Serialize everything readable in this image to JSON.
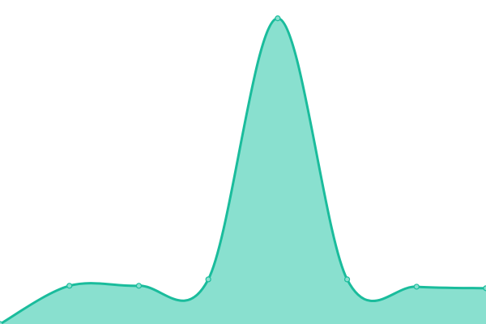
{
  "chart_data": {
    "type": "area",
    "title": "",
    "xlabel": "",
    "ylabel": "",
    "x": [
      0,
      1,
      2,
      3,
      4,
      5,
      6,
      7
    ],
    "values": [
      0,
      12.5,
      12.5,
      14.6,
      100,
      14.6,
      12.2,
      11.7
    ],
    "ylim": [
      0,
      106
    ],
    "grid": false,
    "axes_visible": false,
    "smooth": true,
    "show_points": true,
    "colors": {
      "line": "#1abc9c",
      "fill": "#89e0cf",
      "point_fill": "#89e0cf"
    }
  }
}
